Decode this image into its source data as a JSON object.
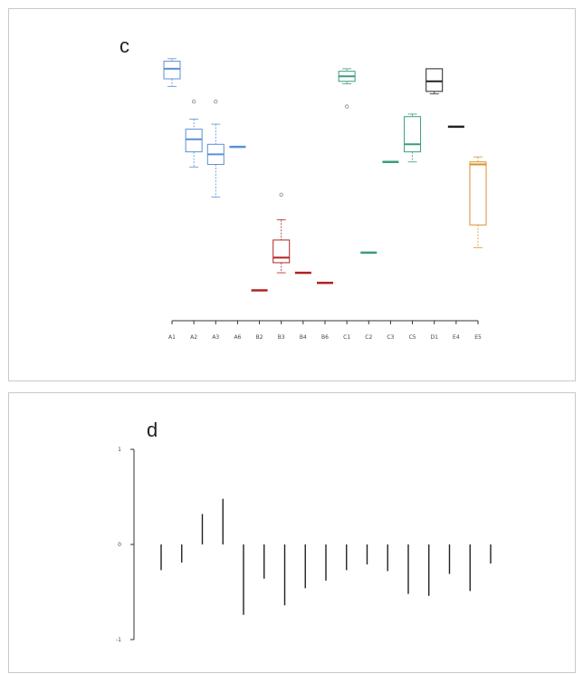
{
  "panels": {
    "c": {
      "letter": "c"
    },
    "d": {
      "letter": "d"
    }
  },
  "chart_data": [
    {
      "type": "box",
      "title": "",
      "categories": [
        "A1",
        "A2",
        "A3",
        "A6",
        "B2",
        "B3",
        "B4",
        "B6",
        "C1",
        "C2",
        "C3",
        "C5",
        "D1",
        "E4",
        "E5"
      ],
      "ylim": [
        0,
        100
      ],
      "grid": false,
      "boxes": [
        {
          "category": "A1",
          "color": "#5b8fd6",
          "min": 88,
          "q1": 91,
          "median": 95,
          "q3": 98,
          "max": 99,
          "outliers": []
        },
        {
          "category": "A2",
          "color": "#5b8fd6",
          "min": 56,
          "q1": 62,
          "median": 67,
          "q3": 71,
          "max": 75,
          "outliers": [
            82
          ]
        },
        {
          "category": "A3",
          "color": "#5b8fd6",
          "min": 44,
          "q1": 57,
          "median": 61,
          "q3": 65,
          "max": 73,
          "outliers": [
            82
          ]
        },
        {
          "category": "A6",
          "color": "#5b8fd6",
          "min": 64,
          "q1": 64,
          "median": 64,
          "q3": 64,
          "max": 64,
          "outliers": []
        },
        {
          "category": "B2",
          "color": "#b22222",
          "min": 7,
          "q1": 7,
          "median": 7,
          "q3": 7,
          "max": 7,
          "outliers": []
        },
        {
          "category": "B3",
          "color": "#b22222",
          "min": 14,
          "q1": 18,
          "median": 20,
          "q3": 27,
          "max": 35,
          "outliers": [
            45
          ]
        },
        {
          "category": "B4",
          "color": "#b22222",
          "min": 14,
          "q1": 14,
          "median": 14,
          "q3": 14,
          "max": 14,
          "outliers": []
        },
        {
          "category": "B6",
          "color": "#b22222",
          "min": 10,
          "q1": 10,
          "median": 10,
          "q3": 10,
          "max": 10,
          "outliers": []
        },
        {
          "category": "C1",
          "color": "#3a9d7a",
          "min": 89,
          "q1": 90,
          "median": 92,
          "q3": 94,
          "max": 95,
          "outliers": [
            80
          ]
        },
        {
          "category": "C2",
          "color": "#3a9d7a",
          "min": 22,
          "q1": 22,
          "median": 22,
          "q3": 22,
          "max": 22,
          "outliers": []
        },
        {
          "category": "C3",
          "color": "#3a9d7a",
          "min": 58,
          "q1": 58,
          "median": 58,
          "q3": 58,
          "max": 58,
          "outliers": []
        },
        {
          "category": "C5",
          "color": "#3a9d7a",
          "min": 58,
          "q1": 62,
          "median": 65,
          "q3": 76,
          "max": 77,
          "outliers": []
        },
        {
          "category": "D1",
          "color": "#222222",
          "min": 85,
          "q1": 86,
          "median": 90,
          "q3": 95,
          "max": 95,
          "outliers": []
        },
        {
          "category": "E4",
          "color": "#222222",
          "min": 72,
          "q1": 72,
          "median": 72,
          "q3": 72,
          "max": 72,
          "outliers": []
        },
        {
          "category": "E5",
          "color": "#d9912a",
          "min": 24,
          "q1": 33,
          "median": 57,
          "q3": 58,
          "max": 60,
          "outliers": []
        }
      ]
    },
    {
      "type": "bar",
      "title": "",
      "ylabel": "",
      "ylim": [
        -1,
        1
      ],
      "yticks": [
        -1,
        0,
        1
      ],
      "grid": false,
      "values": [
        -0.27,
        -0.19,
        0.32,
        0.48,
        -0.74,
        -0.36,
        -0.64,
        -0.46,
        -0.38,
        -0.27,
        -0.21,
        -0.28,
        -0.52,
        -0.54,
        -0.31,
        -0.49,
        -0.2
      ]
    }
  ]
}
